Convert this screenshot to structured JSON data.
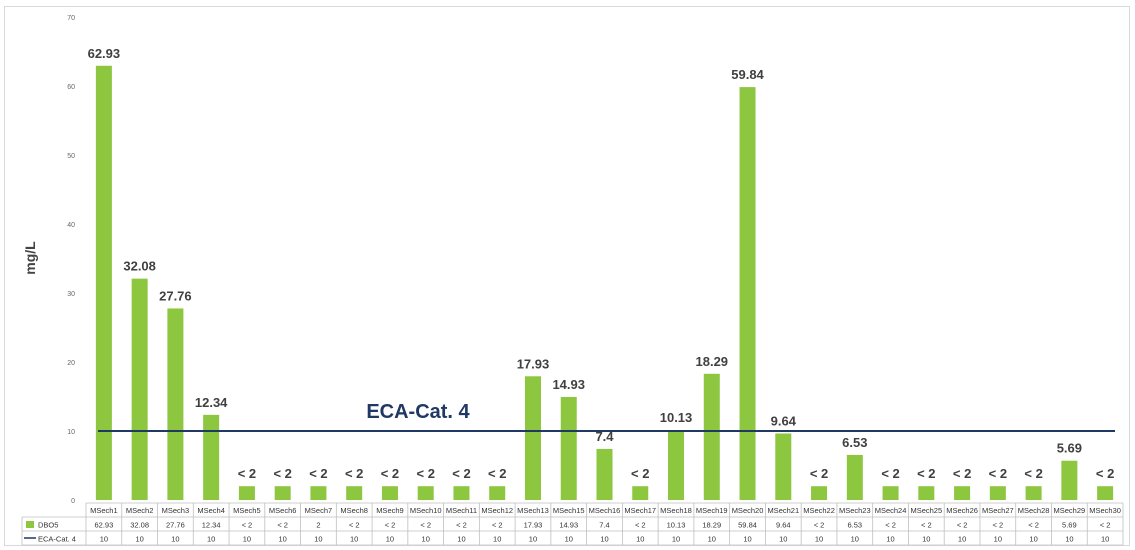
{
  "chart_data": {
    "type": "bar",
    "title": "",
    "xlabel": "",
    "ylabel": "mg/L",
    "ylim": [
      0,
      70
    ],
    "yticks": [
      0,
      10,
      20,
      30,
      40,
      50,
      60,
      70
    ],
    "grid": false,
    "categories": [
      "MSech1",
      "MSech2",
      "MSech3",
      "MSech4",
      "MSech5",
      "MSech6",
      "MSech7",
      "MSech8",
      "MSech9",
      "MSech10",
      "MSech11",
      "MSech12",
      "MSech13",
      "MSech15",
      "MSech16",
      "MSech17",
      "MSech18",
      "MSech19",
      "MSech20",
      "MSech21",
      "MSech22",
      "MSech23",
      "MSech24",
      "MSech25",
      "MSech26",
      "MSech27",
      "MSech28",
      "MSech29",
      "MSech30"
    ],
    "series": [
      {
        "name": "DBO5",
        "kind": "bar",
        "color": "#8dc63f",
        "values": [
          62.93,
          32.08,
          27.76,
          12.34,
          2,
          2,
          2,
          2,
          2,
          2,
          2,
          2,
          17.93,
          14.93,
          7.4,
          2,
          10.13,
          18.29,
          59.84,
          9.64,
          2,
          6.53,
          2,
          2,
          2,
          2,
          2,
          5.69,
          2
        ],
        "data_labels": [
          "62.93",
          "32.08",
          "27.76",
          "12.34",
          "< 2",
          "< 2",
          "< 2",
          "< 2",
          "< 2",
          "< 2",
          "< 2",
          "< 2",
          "17.93",
          "14.93",
          "7.4",
          "< 2",
          "10.13",
          "18.29",
          "59.84",
          "9.64",
          "< 2",
          "6.53",
          "< 2",
          "< 2",
          "< 2",
          "< 2",
          "< 2",
          "5.69",
          "< 2"
        ],
        "table_values": [
          "62.93",
          "32.08",
          "27.76",
          "12.34",
          "< 2",
          "< 2",
          "2",
          "< 2",
          "< 2",
          "< 2",
          "< 2",
          "< 2",
          "17.93",
          "14.93",
          "7.4",
          "< 2",
          "10.13",
          "18.29",
          "59.84",
          "9.64",
          "< 2",
          "6.53",
          "< 2",
          "< 2",
          "< 2",
          "< 2",
          "< 2",
          "5.69",
          "< 2"
        ]
      },
      {
        "name": "ECA-Cat. 4",
        "kind": "line",
        "color": "#1f3864",
        "values": [
          10,
          10,
          10,
          10,
          10,
          10,
          10,
          10,
          10,
          10,
          10,
          10,
          10,
          10,
          10,
          10,
          10,
          10,
          10,
          10,
          10,
          10,
          10,
          10,
          10,
          10,
          10,
          10,
          10
        ],
        "table_values": [
          "10",
          "10",
          "10",
          "10",
          "10",
          "10",
          "10",
          "10",
          "10",
          "10",
          "10",
          "10",
          "10",
          "10",
          "10",
          "10",
          "10",
          "10",
          "10",
          "10",
          "10",
          "10",
          "10",
          "10",
          "10",
          "10",
          "10",
          "10",
          "10"
        ]
      }
    ],
    "annotation": "ECA-Cat. 4",
    "legend": "data-table"
  }
}
